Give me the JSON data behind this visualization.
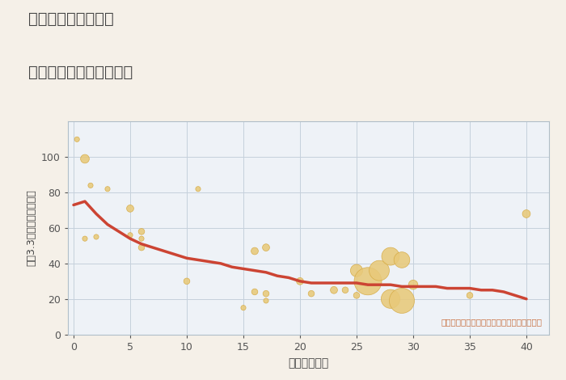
{
  "title_line1": "三重県津市木造町の",
  "title_line2": "築年数別中古戸建て価格",
  "xlabel": "築年数（年）",
  "ylabel": "坪（3.3㎡）単価（万円）",
  "background_color": "#f5f0e8",
  "plot_bg_color": "#eef2f7",
  "grid_color": "#c5d0dc",
  "annotation": "円の大きさは、取引のあった物件面積を示す",
  "scatter_x": [
    0.3,
    1,
    1,
    1.5,
    2,
    3,
    5,
    5,
    6,
    6,
    6,
    10,
    11,
    15,
    16,
    16,
    17,
    17,
    17,
    20,
    21,
    23,
    24,
    25,
    25,
    26,
    27,
    28,
    28,
    29,
    29,
    30,
    35,
    40
  ],
  "scatter_y": [
    110,
    99,
    54,
    84,
    55,
    82,
    71,
    56,
    58,
    54,
    49,
    30,
    82,
    15,
    47,
    24,
    49,
    23,
    19,
    30,
    23,
    25,
    25,
    36,
    22,
    30,
    36,
    44,
    20,
    42,
    19,
    28,
    22,
    68
  ],
  "scatter_size": [
    20,
    60,
    20,
    20,
    20,
    20,
    40,
    20,
    30,
    20,
    30,
    30,
    20,
    20,
    40,
    30,
    40,
    30,
    20,
    40,
    30,
    40,
    30,
    120,
    30,
    600,
    320,
    250,
    280,
    200,
    500,
    70,
    30,
    50
  ],
  "scatter_color": "#e8c97a",
  "scatter_edge_color": "#d4a840",
  "line_x": [
    0,
    1,
    2,
    3,
    4,
    5,
    6,
    7,
    8,
    9,
    10,
    11,
    12,
    13,
    14,
    15,
    16,
    17,
    18,
    19,
    20,
    21,
    22,
    23,
    24,
    25,
    26,
    27,
    28,
    29,
    30,
    31,
    32,
    33,
    34,
    35,
    36,
    37,
    38,
    39,
    40
  ],
  "line_y": [
    73,
    75,
    68,
    62,
    58,
    54,
    51,
    49,
    47,
    45,
    43,
    42,
    41,
    40,
    38,
    37,
    36,
    35,
    33,
    32,
    30,
    29,
    29,
    29,
    29,
    29,
    28,
    28,
    28,
    27,
    27,
    27,
    27,
    26,
    26,
    26,
    25,
    25,
    24,
    22,
    20
  ],
  "line_color": "#cc4433",
  "line_width": 2.5,
  "xlim": [
    -0.5,
    42
  ],
  "ylim": [
    0,
    120
  ],
  "xticks": [
    0,
    5,
    10,
    15,
    20,
    25,
    30,
    35,
    40
  ],
  "yticks": [
    0,
    20,
    40,
    60,
    80,
    100
  ],
  "title_color": "#444444",
  "tick_color": "#555555",
  "label_color": "#444444",
  "annotation_color": "#c87040",
  "spine_color": "#b0bec8"
}
